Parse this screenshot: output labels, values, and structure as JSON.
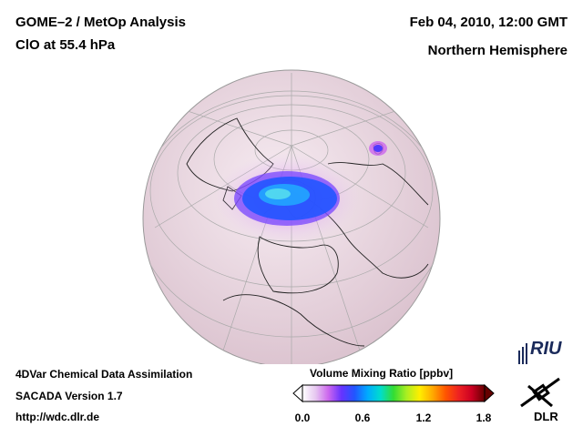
{
  "header": {
    "title_line1": "GOME–2 / MetOp Analysis",
    "title_line2": "ClO at 55.4 hPa",
    "date": "Feb 04, 2010, 12:00 GMT",
    "hemisphere": "Northern Hemisphere"
  },
  "footer": {
    "line1": "4DVar Chemical Data Assimilation",
    "line2": "SACADA Version 1.7",
    "line3": "http://wdc.dlr.de"
  },
  "colorbar": {
    "title": "Volume Mixing Ratio [ppbv]",
    "ticks": [
      "0.0",
      "0.6",
      "1.2",
      "1.8"
    ],
    "range": [
      0.0,
      1.8
    ],
    "colors": [
      "#ffffff",
      "#e6c8f0",
      "#cc66ee",
      "#6633ff",
      "#2255ff",
      "#00aaff",
      "#00ddcc",
      "#33dd33",
      "#aaee22",
      "#ffee00",
      "#ffaa00",
      "#ff5500",
      "#ee2222",
      "#cc0022",
      "#660000"
    ]
  },
  "logos": {
    "riu": "RIU",
    "dlr": "DLR"
  },
  "map": {
    "projection": "orthographic, Northern Hemisphere",
    "background_color": "#f2e6ec",
    "ocean_tint": "#f6e8ee"
  }
}
